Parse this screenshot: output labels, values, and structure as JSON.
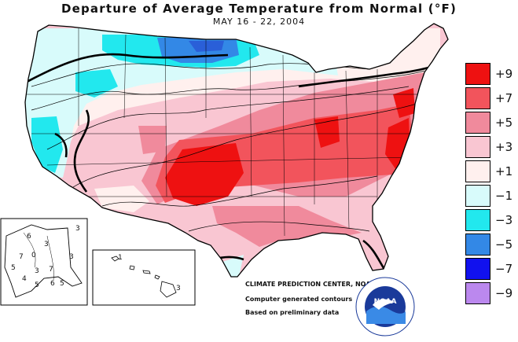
{
  "map": {
    "title": "Departure of Average Temperature from Normal (°F)",
    "subtitle": "MAY 16 - 22, 2004"
  },
  "legend": {
    "items": [
      {
        "label": "+9",
        "color": "#ee1111"
      },
      {
        "label": "+7",
        "color": "#f2545c"
      },
      {
        "label": "+5",
        "color": "#f08a9c"
      },
      {
        "label": "+3",
        "color": "#f9c6d2"
      },
      {
        "label": "+1",
        "color": "#fff0ee"
      },
      {
        "label": "−1",
        "color": "#d8fbfb"
      },
      {
        "label": "−3",
        "color": "#22e8ee"
      },
      {
        "label": "−5",
        "color": "#3388e6"
      },
      {
        "label": "−7",
        "color": "#1111ee"
      },
      {
        "label": "−9",
        "color": "#bb88ee"
      }
    ]
  },
  "credits": {
    "center": "CLIMATE PREDICTION CENTER, NOAA",
    "line1": "Computer generated contours",
    "line2": "Based on preliminary data"
  },
  "logo": {
    "text": "NOAA"
  },
  "alaska": {
    "labels": [
      "3",
      "6",
      "7",
      "0",
      "3",
      "5",
      "7",
      "3",
      "4",
      "6",
      "5",
      "3",
      "5"
    ]
  },
  "hawaii": {
    "labels": [
      "1",
      "3"
    ]
  }
}
